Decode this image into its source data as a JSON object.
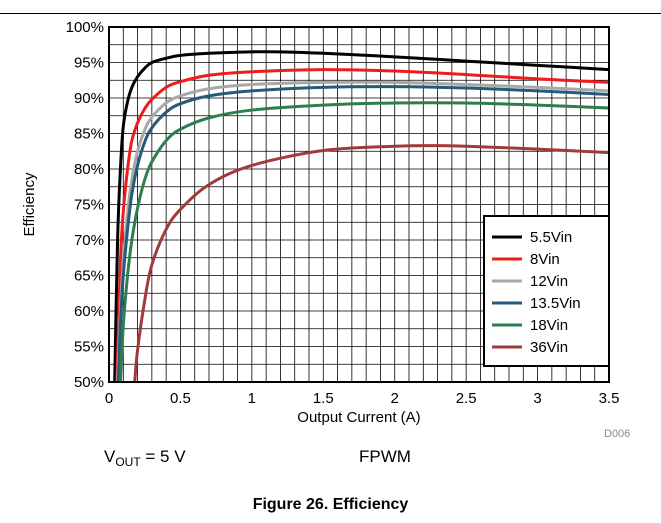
{
  "chart_data": {
    "type": "line",
    "xlabel": "Output Current (A)",
    "ylabel": "Efficiency",
    "xlim": [
      0,
      3.5
    ],
    "ylim": [
      50,
      100
    ],
    "x_ticks": [
      "0",
      "0.5",
      "1",
      "1.5",
      "2",
      "2.5",
      "3",
      "3.5"
    ],
    "y_ticks": [
      "50%",
      "55%",
      "60%",
      "65%",
      "70%",
      "75%",
      "80%",
      "85%",
      "90%",
      "95%",
      "100%"
    ],
    "grid": true,
    "legend_position": "bottom-right",
    "series": [
      {
        "name": "5.5Vin",
        "color": "#000000",
        "x": [
          0.04,
          0.06,
          0.08,
          0.1,
          0.13,
          0.16,
          0.2,
          0.25,
          0.3,
          0.4,
          0.5,
          0.7,
          1.0,
          1.2,
          1.5,
          2.0,
          2.5,
          3.0,
          3.5
        ],
        "y": [
          50,
          70,
          80,
          86,
          89.5,
          91.5,
          93,
          94.2,
          95,
          95.6,
          96,
          96.3,
          96.5,
          96.5,
          96.3,
          95.8,
          95.2,
          94.6,
          94
        ]
      },
      {
        "name": "8Vin",
        "color": "#ee1c1c",
        "x": [
          0.055,
          0.08,
          0.1,
          0.13,
          0.16,
          0.2,
          0.25,
          0.3,
          0.4,
          0.5,
          0.7,
          1.0,
          1.5,
          2.0,
          2.5,
          3.0,
          3.5
        ],
        "y": [
          50,
          67,
          74,
          80,
          84,
          86.5,
          88.5,
          89.8,
          91.5,
          92.3,
          93.2,
          93.7,
          94,
          93.8,
          93.3,
          92.7,
          92.2
        ]
      },
      {
        "name": "12Vin",
        "color": "#a8a8a8",
        "x": [
          0.06,
          0.08,
          0.1,
          0.13,
          0.16,
          0.2,
          0.25,
          0.3,
          0.4,
          0.5,
          0.7,
          1.0,
          1.5,
          2.0,
          2.5,
          3.0,
          3.5
        ],
        "y": [
          50,
          60,
          67,
          74,
          78.5,
          82.5,
          85.5,
          87.3,
          89.3,
          90.3,
          91.3,
          91.9,
          92.2,
          92.2,
          91.9,
          91.5,
          91
        ]
      },
      {
        "name": "13.5Vin",
        "color": "#255b7a",
        "x": [
          0.065,
          0.08,
          0.1,
          0.13,
          0.16,
          0.2,
          0.25,
          0.3,
          0.4,
          0.5,
          0.7,
          1.0,
          1.5,
          2.0,
          2.5,
          3.0,
          3.5
        ],
        "y": [
          50,
          58,
          65,
          71.5,
          76.5,
          80.5,
          83.8,
          85.8,
          88,
          89.2,
          90.3,
          91,
          91.5,
          91.6,
          91.4,
          91,
          90.5
        ]
      },
      {
        "name": "18Vin",
        "color": "#2e7d4f",
        "x": [
          0.08,
          0.1,
          0.13,
          0.16,
          0.2,
          0.25,
          0.3,
          0.4,
          0.5,
          0.7,
          1.0,
          1.5,
          2.0,
          2.5,
          3.0,
          3.5
        ],
        "y": [
          50,
          58,
          65,
          70,
          74.5,
          78.5,
          81,
          84,
          85.6,
          87.2,
          88.3,
          89,
          89.3,
          89.3,
          89,
          88.6
        ]
      },
      {
        "name": "36Vin",
        "color": "#a33a3a",
        "x": [
          0.18,
          0.2,
          0.25,
          0.3,
          0.4,
          0.5,
          0.7,
          1.0,
          1.5,
          2.0,
          2.3,
          2.5,
          3.0,
          3.5
        ],
        "y": [
          50,
          54.5,
          61.5,
          66.5,
          71.5,
          74.3,
          77.8,
          80.5,
          82.6,
          83.2,
          83.3,
          83.2,
          82.8,
          82.3
        ]
      }
    ]
  },
  "annotations": {
    "vout_main": "V",
    "vout_sub": "OUT",
    "vout_rest": " = 5 V",
    "mode": "FPWM",
    "code": "D006"
  },
  "caption": "Figure 26. Efficiency"
}
